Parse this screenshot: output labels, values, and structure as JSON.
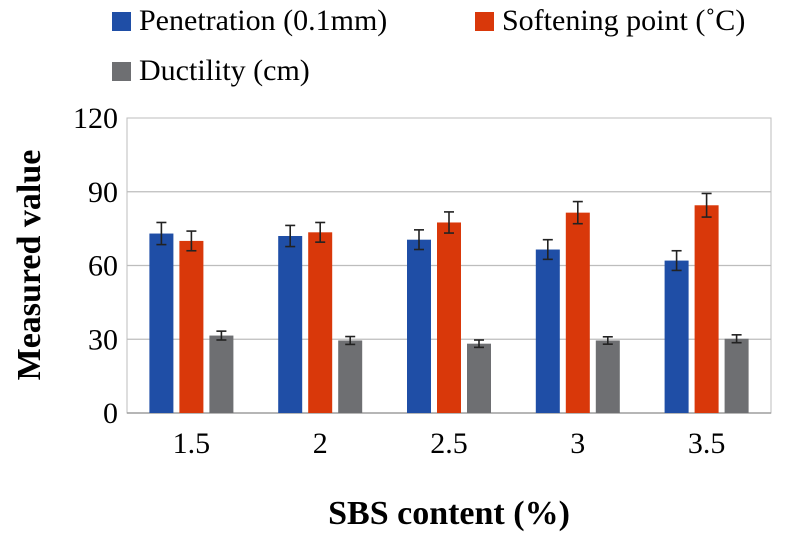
{
  "chart_data": {
    "type": "bar",
    "title": "",
    "xlabel": "SBS content (%)",
    "ylabel": "Measured value",
    "categories": [
      "1.5",
      "2",
      "2.5",
      "3",
      "3.5"
    ],
    "ylim": [
      0,
      120
    ],
    "yticks": [
      0,
      30,
      60,
      90,
      120
    ],
    "grid": true,
    "legend_position": "top",
    "series": [
      {
        "name": "Penetration (0.1mm)",
        "color": "#1f4ea6",
        "values": [
          73,
          72,
          70.5,
          66.5,
          62
        ],
        "errors": [
          4.5,
          4.3,
          4,
          4,
          4
        ]
      },
      {
        "name": "Softening point (˚C)",
        "color": "#d9380a",
        "values": [
          70,
          73.5,
          77.5,
          81.5,
          84.5
        ],
        "errors": [
          4,
          4,
          4.3,
          4.5,
          4.8
        ]
      },
      {
        "name": "Ductility (cm)",
        "color": "#6e6f72",
        "values": [
          31.5,
          29.5,
          28.2,
          29.5,
          30.2
        ],
        "errors": [
          1.8,
          1.6,
          1.5,
          1.5,
          1.6
        ]
      }
    ]
  }
}
